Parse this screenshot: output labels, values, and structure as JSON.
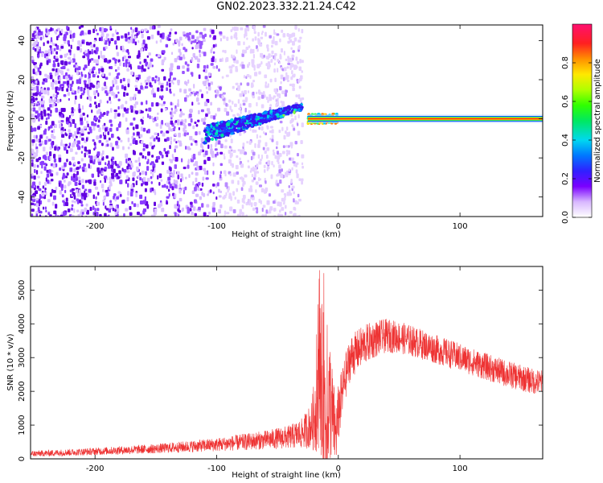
{
  "title": "GN02.2023.332.21.24.C42",
  "colors": {
    "trace": "#ee3333",
    "specks": "#6a00e8",
    "axis": "#000000"
  },
  "chart_data": [
    {
      "type": "heatmap",
      "xlabel": "Height of straight line (km)",
      "ylabel": "Frequency (Hz)",
      "xlim": [
        -253,
        168
      ],
      "ylim": [
        -50,
        48
      ],
      "xticks": [
        -200,
        -100,
        0,
        100
      ],
      "yticks": [
        -40,
        -20,
        0,
        20,
        40
      ],
      "colorbar": {
        "label": "Normalized spectral amplitude",
        "range": [
          0,
          1
        ],
        "ticks": [
          0,
          0.2,
          0.4,
          0.6,
          0.8
        ],
        "tick_labels": [
          "0.0",
          "0.2",
          "0.4",
          "0.6",
          "0.8"
        ]
      },
      "features": {
        "noise_region_x": [
          -253,
          -45
        ],
        "emerging_signal": {
          "x_start": -110,
          "x_end": -30,
          "freq_start": -8,
          "freq_end": 6
        },
        "steady_tone": {
          "x_start": -25,
          "x_end": 168,
          "freq": 0,
          "amplitude": 1.0
        }
      }
    },
    {
      "type": "line",
      "xlabel": "Height of straight line (km)",
      "ylabel": "SNR (10 * v/v)",
      "xlim": [
        -253,
        168
      ],
      "ylim": [
        0,
        5700
      ],
      "xticks": [
        -200,
        -100,
        0,
        100
      ],
      "yticks": [
        0,
        1000,
        2000,
        3000,
        4000,
        5000
      ],
      "envelope": {
        "x": [
          -253,
          -200,
          -150,
          -100,
          -60,
          -40,
          -30,
          -22,
          -18,
          -15,
          -12,
          -10,
          -7,
          -5,
          -2,
          0,
          5,
          10,
          20,
          30,
          40,
          50,
          60,
          80,
          100,
          120,
          140,
          160,
          168
        ],
        "base": [
          150,
          220,
          300,
          420,
          560,
          650,
          750,
          1000,
          1500,
          2500,
          2000,
          1000,
          1800,
          1300,
          700,
          1300,
          2300,
          3000,
          3350,
          3550,
          3650,
          3600,
          3500,
          3250,
          3000,
          2750,
          2500,
          2300,
          2250
        ],
        "amp": [
          90,
          110,
          140,
          200,
          280,
          350,
          450,
          700,
          1400,
          2300,
          2400,
          1800,
          1900,
          1500,
          900,
          900,
          700,
          650,
          600,
          550,
          500,
          480,
          460,
          430,
          420,
          400,
          400,
          380,
          380
        ]
      }
    }
  ]
}
